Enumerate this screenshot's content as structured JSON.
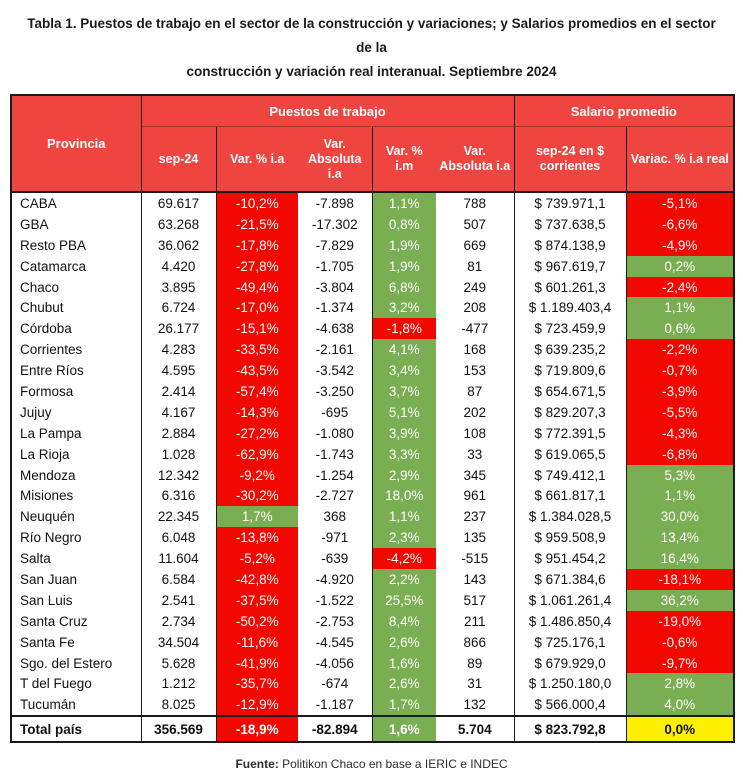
{
  "title": {
    "line1": "Tabla 1. Puestos de trabajo en el sector de la construcción y variaciones; y Salarios promedios en el sector de la",
    "line2": "construcción y variación real interanual. Septiembre 2024"
  },
  "table": {
    "group_headers": {
      "jobs": "Puestos de trabajo",
      "salary": "Salario promedio"
    },
    "columns": {
      "provincia": "Provincia",
      "sep24": "sep-24",
      "var_pct_ia": "Var. % i.a",
      "var_abs_ia": "Var. Absoluta i.a",
      "var_pct_im": "Var. % i.m",
      "var_abs_im": "Var. Absoluta i.a",
      "salary_sep24": "sep-24 en $ corrientes",
      "salary_var_real": "Variac. % i.a real"
    },
    "rows": [
      {
        "name": "CABA",
        "sep24": "69.617",
        "var_ia": "-10,2%",
        "via_bg": "red",
        "abs_ia": "-7.898",
        "var_im": "1,1%",
        "vim_bg": "green",
        "abs_im": "788",
        "salary": "$ 739.971,1",
        "real": "-5,1%",
        "real_bg": "red"
      },
      {
        "name": "GBA",
        "sep24": "63.268",
        "var_ia": "-21,5%",
        "via_bg": "red",
        "abs_ia": "-17.302",
        "var_im": "0,8%",
        "vim_bg": "green",
        "abs_im": "507",
        "salary": "$ 737.638,5",
        "real": "-6,6%",
        "real_bg": "red"
      },
      {
        "name": "Resto PBA",
        "sep24": "36.062",
        "var_ia": "-17,8%",
        "via_bg": "red",
        "abs_ia": "-7.829",
        "var_im": "1,9%",
        "vim_bg": "green",
        "abs_im": "669",
        "salary": "$ 874.138,9",
        "real": "-4,9%",
        "real_bg": "red"
      },
      {
        "name": "Catamarca",
        "sep24": "4.420",
        "var_ia": "-27,8%",
        "via_bg": "red",
        "abs_ia": "-1.705",
        "var_im": "1,9%",
        "vim_bg": "green",
        "abs_im": "81",
        "salary": "$ 967.619,7",
        "real": "0,2%",
        "real_bg": "green"
      },
      {
        "name": "Chaco",
        "sep24": "3.895",
        "var_ia": "-49,4%",
        "via_bg": "red",
        "abs_ia": "-3.804",
        "var_im": "6,8%",
        "vim_bg": "green",
        "abs_im": "249",
        "salary": "$ 601.261,3",
        "real": "-2,4%",
        "real_bg": "red"
      },
      {
        "name": "Chubut",
        "sep24": "6.724",
        "var_ia": "-17,0%",
        "via_bg": "red",
        "abs_ia": "-1.374",
        "var_im": "3,2%",
        "vim_bg": "green",
        "abs_im": "208",
        "salary": "$ 1.189.403,4",
        "real": "1,1%",
        "real_bg": "green"
      },
      {
        "name": "Córdoba",
        "sep24": "26.177",
        "var_ia": "-15,1%",
        "via_bg": "red",
        "abs_ia": "-4.638",
        "var_im": "-1,8%",
        "vim_bg": "red",
        "abs_im": "-477",
        "salary": "$ 723.459,9",
        "real": "0,6%",
        "real_bg": "green"
      },
      {
        "name": "Corrientes",
        "sep24": "4.283",
        "var_ia": "-33,5%",
        "via_bg": "red",
        "abs_ia": "-2.161",
        "var_im": "4,1%",
        "vim_bg": "green",
        "abs_im": "168",
        "salary": "$ 639.235,2",
        "real": "-2,2%",
        "real_bg": "red"
      },
      {
        "name": "Entre Ríos",
        "sep24": "4.595",
        "var_ia": "-43,5%",
        "via_bg": "red",
        "abs_ia": "-3.542",
        "var_im": "3,4%",
        "vim_bg": "green",
        "abs_im": "153",
        "salary": "$ 719.809,6",
        "real": "-0,7%",
        "real_bg": "red"
      },
      {
        "name": "Formosa",
        "sep24": "2.414",
        "var_ia": "-57,4%",
        "via_bg": "red",
        "abs_ia": "-3.250",
        "var_im": "3,7%",
        "vim_bg": "green",
        "abs_im": "87",
        "salary": "$ 654.671,5",
        "real": "-3,9%",
        "real_bg": "red"
      },
      {
        "name": "Jujuy",
        "sep24": "4.167",
        "var_ia": "-14,3%",
        "via_bg": "red",
        "abs_ia": "-695",
        "var_im": "5,1%",
        "vim_bg": "green",
        "abs_im": "202",
        "salary": "$ 829.207,3",
        "real": "-5,5%",
        "real_bg": "red"
      },
      {
        "name": "La Pampa",
        "sep24": "2.884",
        "var_ia": "-27,2%",
        "via_bg": "red",
        "abs_ia": "-1.080",
        "var_im": "3,9%",
        "vim_bg": "green",
        "abs_im": "108",
        "salary": "$ 772.391,5",
        "real": "-4,3%",
        "real_bg": "red"
      },
      {
        "name": "La Rioja",
        "sep24": "1.028",
        "var_ia": "-62,9%",
        "via_bg": "red",
        "abs_ia": "-1.743",
        "var_im": "3,3%",
        "vim_bg": "green",
        "abs_im": "33",
        "salary": "$ 619.065,5",
        "real": "-6,8%",
        "real_bg": "red"
      },
      {
        "name": "Mendoza",
        "sep24": "12.342",
        "var_ia": "-9,2%",
        "via_bg": "red",
        "abs_ia": "-1.254",
        "var_im": "2,9%",
        "vim_bg": "green",
        "abs_im": "345",
        "salary": "$ 749.412,1",
        "real": "5,3%",
        "real_bg": "green"
      },
      {
        "name": "Misiones",
        "sep24": "6.316",
        "var_ia": "-30,2%",
        "via_bg": "red",
        "abs_ia": "-2.727",
        "var_im": "18,0%",
        "vim_bg": "green",
        "abs_im": "961",
        "salary": "$ 661.817,1",
        "real": "1,1%",
        "real_bg": "green"
      },
      {
        "name": "Neuquén",
        "sep24": "22.345",
        "var_ia": "1,7%",
        "via_bg": "green",
        "abs_ia": "368",
        "var_im": "1,1%",
        "vim_bg": "green",
        "abs_im": "237",
        "salary": "$ 1.384.028,5",
        "real": "30,0%",
        "real_bg": "green"
      },
      {
        "name": "Río Negro",
        "sep24": "6.048",
        "var_ia": "-13,8%",
        "via_bg": "red",
        "abs_ia": "-971",
        "var_im": "2,3%",
        "vim_bg": "green",
        "abs_im": "135",
        "salary": "$ 959.508,9",
        "real": "13,4%",
        "real_bg": "green"
      },
      {
        "name": "Salta",
        "sep24": "11.604",
        "var_ia": "-5,2%",
        "via_bg": "red",
        "abs_ia": "-639",
        "var_im": "-4,2%",
        "vim_bg": "red",
        "abs_im": "-515",
        "salary": "$ 951.454,2",
        "real": "16,4%",
        "real_bg": "green"
      },
      {
        "name": "San Juan",
        "sep24": "6.584",
        "var_ia": "-42,8%",
        "via_bg": "red",
        "abs_ia": "-4.920",
        "var_im": "2,2%",
        "vim_bg": "green",
        "abs_im": "143",
        "salary": "$ 671.384,6",
        "real": "-18,1%",
        "real_bg": "red"
      },
      {
        "name": "San Luis",
        "sep24": "2.541",
        "var_ia": "-37,5%",
        "via_bg": "red",
        "abs_ia": "-1.522",
        "var_im": "25,5%",
        "vim_bg": "green",
        "abs_im": "517",
        "salary": "$ 1.061.261,4",
        "real": "36,2%",
        "real_bg": "green"
      },
      {
        "name": "Santa Cruz",
        "sep24": "2.734",
        "var_ia": "-50,2%",
        "via_bg": "red",
        "abs_ia": "-2.753",
        "var_im": "8,4%",
        "vim_bg": "green",
        "abs_im": "211",
        "salary": "$ 1.486.850,4",
        "real": "-19,0%",
        "real_bg": "red"
      },
      {
        "name": "Santa Fe",
        "sep24": "34.504",
        "var_ia": "-11,6%",
        "via_bg": "red",
        "abs_ia": "-4.545",
        "var_im": "2,6%",
        "vim_bg": "green",
        "abs_im": "866",
        "salary": "$ 725.176,1",
        "real": "-0,6%",
        "real_bg": "red"
      },
      {
        "name": "Sgo. del Estero",
        "sep24": "5.628",
        "var_ia": "-41,9%",
        "via_bg": "red",
        "abs_ia": "-4.056",
        "var_im": "1,6%",
        "vim_bg": "green",
        "abs_im": "89",
        "salary": "$ 679.929,0",
        "real": "-9,7%",
        "real_bg": "red"
      },
      {
        "name": "T del Fuego",
        "sep24": "1.212",
        "var_ia": "-35,7%",
        "via_bg": "red",
        "abs_ia": "-674",
        "var_im": "2,6%",
        "vim_bg": "green",
        "abs_im": "31",
        "salary": "$ 1.250.180,0",
        "real": "2,8%",
        "real_bg": "green"
      },
      {
        "name": "Tucumán",
        "sep24": "8.025",
        "var_ia": "-12,9%",
        "via_bg": "red",
        "abs_ia": "-1.187",
        "var_im": "1,7%",
        "vim_bg": "green",
        "abs_im": "132",
        "salary": "$ 566.000,4",
        "real": "4,0%",
        "real_bg": "green"
      }
    ],
    "total": {
      "name": "Total país",
      "sep24": "356.569",
      "var_ia": "-18,9%",
      "via_bg": "red",
      "abs_ia": "-82.894",
      "var_im": "1,6%",
      "vim_bg": "green",
      "abs_im": "5.704",
      "salary": "$ 823.792,8",
      "real": "0,0%",
      "real_bg": "yellow"
    }
  },
  "footer": {
    "source_label": "Fuente:",
    "source_text": " Politikon Chaco en base a IERIC e INDEC"
  },
  "colors": {
    "header_red": "#ee4541",
    "negative_red": "#f30800",
    "positive_green": "#7aae52",
    "total_yellow": "#ffef00"
  }
}
